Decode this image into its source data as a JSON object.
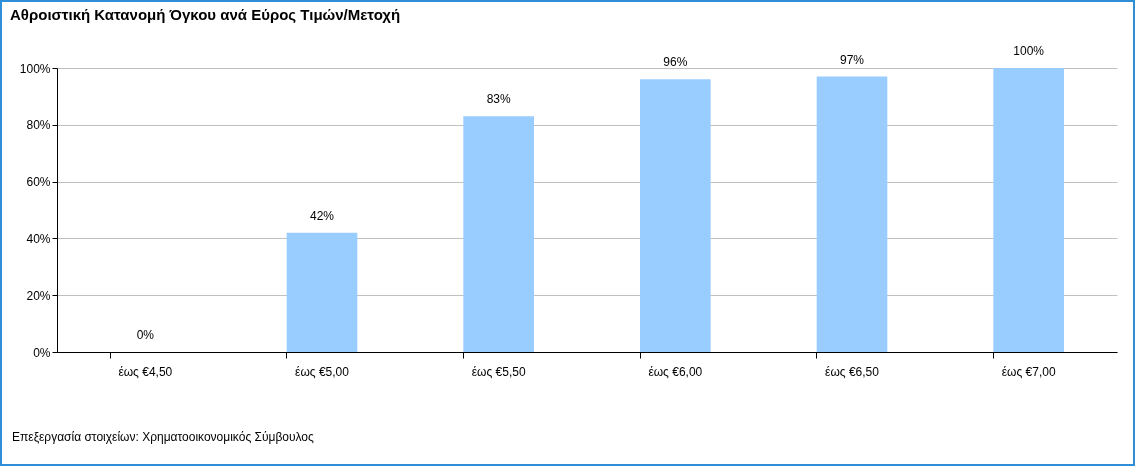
{
  "chart_data": {
    "type": "bar",
    "title": "Αθροιστική Κατανομή Όγκου ανά Εύρος Τιμών/Μετοχή",
    "categories": [
      "έως €4,50",
      "έως €5,00",
      "έως €5,50",
      "έως €6,00",
      "έως €6,50",
      "έως €7,00"
    ],
    "values": [
      0,
      42,
      83,
      96,
      97,
      100
    ],
    "value_labels": [
      "0%",
      "42%",
      "83%",
      "96%",
      "97%",
      "100%"
    ],
    "color": "#99ccff",
    "ylim": [
      0,
      100
    ],
    "yticks": [
      {
        "value": 0,
        "label": "0%"
      },
      {
        "value": 20,
        "label": "20%"
      },
      {
        "value": 40,
        "label": "40%"
      },
      {
        "value": 60,
        "label": "60%"
      },
      {
        "value": 80,
        "label": "80%"
      },
      {
        "value": 100,
        "label": "100%"
      }
    ],
    "grid": "y",
    "annotations": [
      "Επεξεργασία στοιχείων: Χρηματοοικονομικός Σύμβουλος"
    ]
  }
}
